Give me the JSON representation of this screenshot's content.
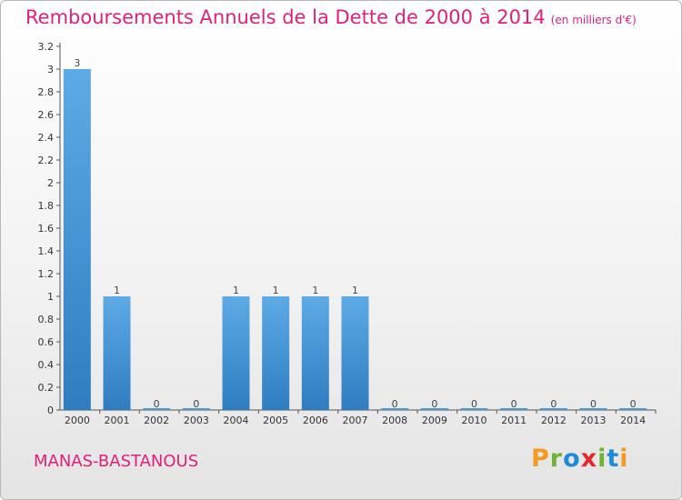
{
  "page": {
    "title": "Remboursements Annuels de la Dette de 2000 à 2014",
    "subtitle": "(en milliers d'€)",
    "commune": "MANAS-BASTANOUS",
    "brand_letters": [
      "P",
      "r",
      "o",
      "x",
      "i",
      "t",
      "i"
    ],
    "brand_colors": [
      "#f39a1f",
      "#6fb432",
      "#1f8ad6",
      "#e5262c",
      "#6fb432",
      "#1f8ad6",
      "#f39a1f"
    ],
    "title_color": "#e0207a"
  },
  "chart_data": {
    "type": "bar",
    "title": "Remboursements Annuels de la Dette de 2000 à 2014",
    "subtitle": "(en milliers d'€)",
    "xlabel": "",
    "ylabel": "",
    "categories": [
      "2000",
      "2001",
      "2002",
      "2003",
      "2004",
      "2005",
      "2006",
      "2007",
      "2008",
      "2009",
      "2010",
      "2011",
      "2012",
      "2013",
      "2014"
    ],
    "values": [
      3,
      1,
      0,
      0,
      1,
      1,
      1,
      1,
      0,
      0,
      0,
      0,
      0,
      0,
      0
    ],
    "value_labels": [
      "3",
      "1",
      "0",
      "0",
      "1",
      "1",
      "1",
      "1",
      "0",
      "0",
      "0",
      "0",
      "0",
      "0",
      "0"
    ],
    "ylim": [
      0,
      3.2
    ],
    "yticks": [
      {
        "v": 0,
        "label": "0"
      },
      {
        "v": 0.2,
        "label": "0.2"
      },
      {
        "v": 0.4,
        "label": "0.4"
      },
      {
        "v": 0.6,
        "label": "0.6"
      },
      {
        "v": 0.8,
        "label": "0.8"
      },
      {
        "v": 1,
        "label": "1"
      },
      {
        "v": 1.2,
        "label": "1.2"
      },
      {
        "v": 1.4,
        "label": "1.4"
      },
      {
        "v": 1.6,
        "label": "1.6"
      },
      {
        "v": 1.8,
        "label": "1.8"
      },
      {
        "v": 2,
        "label": "2"
      },
      {
        "v": 2.2,
        "label": "2.2"
      },
      {
        "v": 2.4,
        "label": "2.4"
      },
      {
        "v": 2.6,
        "label": "2.6"
      },
      {
        "v": 2.8,
        "label": "2.8"
      },
      {
        "v": 3,
        "label": "3"
      },
      {
        "v": 3.2,
        "label": "3.2"
      }
    ],
    "bar_color": "#4a98d8",
    "grid": false
  }
}
